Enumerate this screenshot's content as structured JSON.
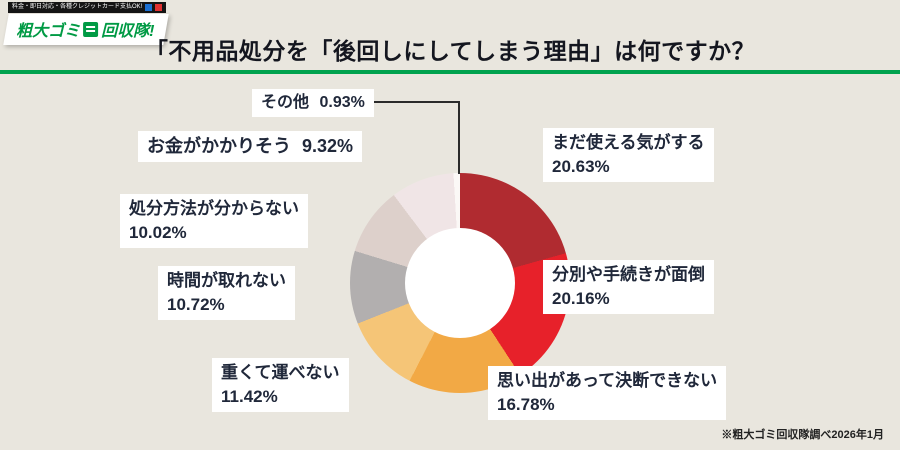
{
  "header": {
    "topbar_text": "料金・即日対応・各種クレジットカード支払OK!",
    "logo_text_1": "粗大ゴミ",
    "logo_text_2": "回収隊!",
    "title": "「不用品処分を「後回しにしてしまう理由」は何ですか？"
  },
  "footnote": "※粗大ゴミ回収隊調べ2026年1月",
  "chart_data": {
    "type": "pie",
    "donut": true,
    "start_angle_deg": 0,
    "direction": "clockwise",
    "title": "不用品処分を後回しにしてしまう理由",
    "hole_color": "#ffffff",
    "background_color": "#e9e6de",
    "accent_color": "#00a24e",
    "categories": [
      "まだ使える気がする",
      "分別や手続きが面倒",
      "思い出があって決断できない",
      "重くて運べない",
      "時間が取れない",
      "処分方法が分からない",
      "お金がかかりそう",
      "その他"
    ],
    "values": [
      20.63,
      20.16,
      16.78,
      11.42,
      10.72,
      10.02,
      9.32,
      0.93
    ],
    "slices": [
      {
        "label": "まだ使える気がする",
        "pct": "20.63%",
        "value": 20.63,
        "color": "#b02b30"
      },
      {
        "label": "分別や手続きが面倒",
        "pct": "20.16%",
        "value": 20.16,
        "color": "#e7212a"
      },
      {
        "label": "思い出があって決断できない",
        "pct": "16.78%",
        "value": 16.78,
        "color": "#f2a945"
      },
      {
        "label": "重くて運べない",
        "pct": "11.42%",
        "value": 11.42,
        "color": "#f5c577"
      },
      {
        "label": "時間が取れない",
        "pct": "10.72%",
        "value": 10.72,
        "color": "#b2afaf"
      },
      {
        "label": "処分方法が分からない",
        "pct": "10.02%",
        "value": 10.02,
        "color": "#ddd0cb"
      },
      {
        "label": "お金がかかりそう",
        "pct": "9.32%",
        "value": 9.32,
        "color": "#f0e5e6"
      },
      {
        "label": "その他",
        "pct": "0.93%",
        "value": 0.93,
        "color": "#fbf8f6"
      }
    ]
  }
}
